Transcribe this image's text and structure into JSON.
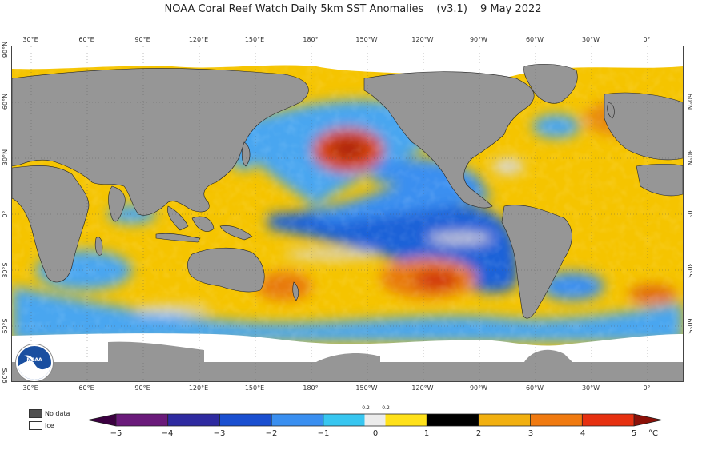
{
  "title": {
    "main": "NOAA Coral Reef Watch Daily 5km SST Anomalies",
    "version": "(v3.1)",
    "date": "9 May 2022"
  },
  "longitude_ticks": [
    "30°E",
    "60°E",
    "90°E",
    "120°E",
    "150°E",
    "180°",
    "150°W",
    "120°W",
    "90°W",
    "60°W",
    "30°W",
    "0°"
  ],
  "latitude_ticks_left": [
    "90°N",
    "60°N",
    "30°N",
    "0°",
    "30°S",
    "60°S",
    "90°S"
  ],
  "latitude_ticks_right": [
    "60°N",
    "30°N",
    "0°",
    "30°S",
    "60°S"
  ],
  "legend": {
    "no_data_label": "No data",
    "ice_label": "Ice",
    "no_data_color": "#505050",
    "ice_color": "#ffffff"
  },
  "colorbar": {
    "labels": [
      "−5",
      "−4",
      "−3",
      "−2",
      "−1",
      "0",
      "1",
      "2",
      "3",
      "4",
      "5"
    ],
    "small_labels": [
      "-0.2",
      "0.2"
    ],
    "unit": "°C",
    "colors": [
      "#3b0040",
      "#6a1a7a",
      "#2e2aa0",
      "#1a4fd0",
      "#3a8ff0",
      "#38c6f0",
      "#ececec",
      "#ffe11a",
      "#f2b010",
      "#f07a10",
      "#e63010",
      "#8b1008"
    ]
  },
  "map_colors": {
    "land": "#969696",
    "ice": "#ffffff",
    "warm": "#f5c400",
    "cool": "#4aa6f0",
    "hot": "#d84a10",
    "cold": "#1a62d8"
  },
  "logo_text": "NOAA"
}
